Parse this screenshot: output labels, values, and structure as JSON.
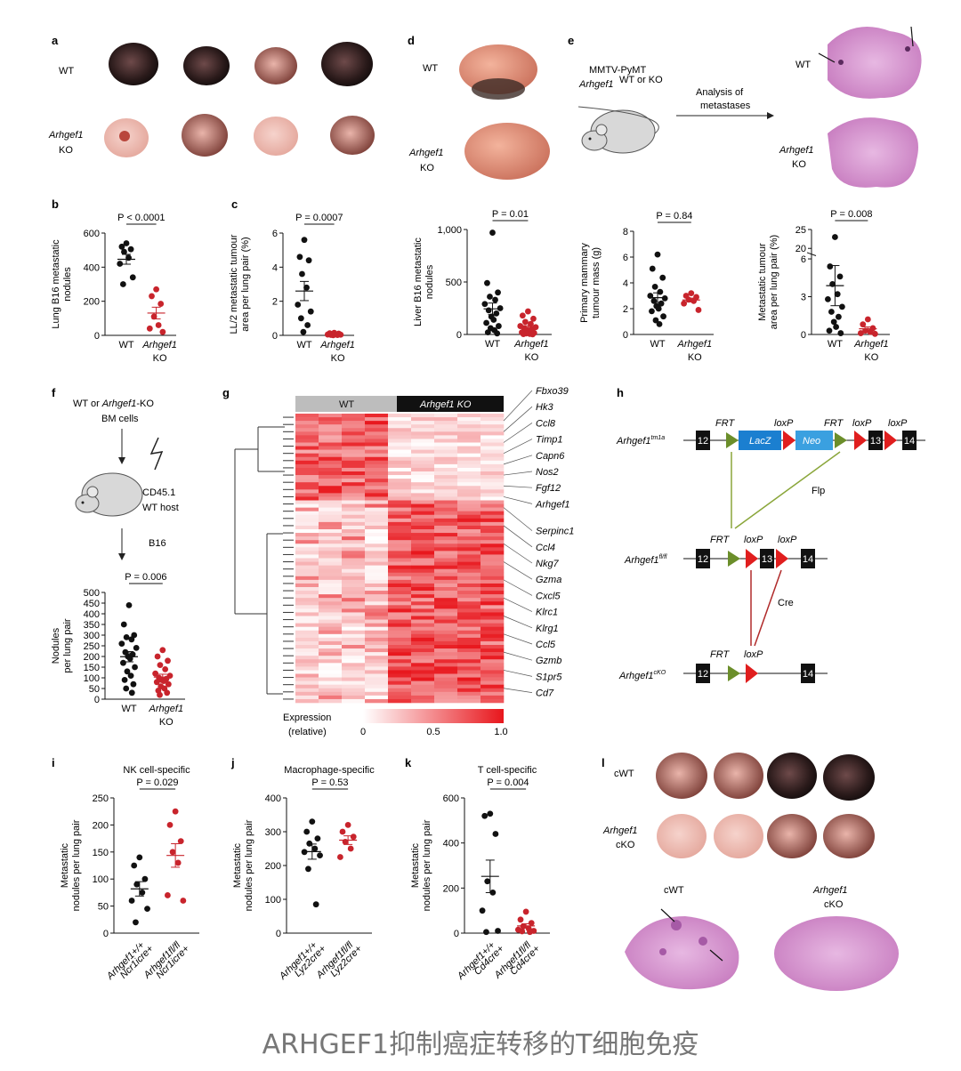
{
  "caption": "ARHGEF1抑制癌症转移的T细胞免疫",
  "colors": {
    "wt": "#111111",
    "ko": "#c8242c",
    "tissue": "#c77bbf",
    "red": "#e02020"
  },
  "panel_a": {
    "label": "a",
    "wt": "WT",
    "ko_gene": "Arhgef1",
    "ko_suffix": "KO"
  },
  "panel_d": {
    "label": "d",
    "wt": "WT",
    "ko_gene": "Arhgef1",
    "ko_suffix": "KO"
  },
  "panel_e": {
    "label": "e",
    "model": "MMTV-PyMT",
    "genotype": "Arhgef1",
    "genotype_sup": "WT or KO",
    "arrow_l1": "Analysis of",
    "arrow_l2": "metastases",
    "wt": "WT",
    "ko_gene": "Arhgef1",
    "ko_suffix": "KO"
  },
  "panel_f": {
    "label": "f",
    "l1a": "WT or ",
    "l1g": "Arhgef1",
    "l1b": "-KO",
    "l2": "BM cells",
    "host1": "CD45.1",
    "host2": "WT host",
    "b16": "B16"
  },
  "panel_g": {
    "label": "g",
    "wt": "WT",
    "ko": "Arhgef1 KO",
    "legend": "Expression",
    "legend2": "(relative)",
    "ticks": [
      "0",
      "0.5",
      "1.0"
    ],
    "genes": [
      "Fbxo39",
      "Hk3",
      "Ccl8",
      "Timp1",
      "Capn6",
      "Nos2",
      "Fgf12",
      "Arhgef1",
      "Serpinc1",
      "Ccl4",
      "Nkg7",
      "Gzma",
      "Cxcl5",
      "Klrc1",
      "Klrg1",
      "Ccl5",
      "Gzmb",
      "S1pr5",
      "Cd7"
    ]
  },
  "panel_h": {
    "label": "h",
    "a1": "Arhgef1",
    "a1s": "tm1a",
    "a2": "Arhgef1",
    "a2s": "fl/fl",
    "a3": "Arhgef1",
    "a3s": "cKO",
    "frt": "FRT",
    "loxp": "loxP",
    "lacz": "LacZ",
    "neo": "Neo",
    "flp": "Flp",
    "cre": "Cre",
    "exons": [
      "12",
      "13",
      "14"
    ]
  },
  "panel_l": {
    "label": "l",
    "cwt": "cWT",
    "ko_gene": "Arhgef1",
    "ko_suffix": "cKO"
  },
  "chart_data": [
    {
      "panel": "b",
      "type": "scatter",
      "ylabel": "Lung B16 metastatic nodules",
      "ylim": [
        0,
        600
      ],
      "yticks": [
        "0",
        "200",
        "400",
        "600"
      ],
      "pvalue": "P < 0.0001",
      "categories": [
        "WT",
        "Arhgef1 KO"
      ],
      "series": [
        {
          "name": "WT",
          "values": [
            540,
            520,
            505,
            490,
            455,
            420,
            340,
            300
          ]
        },
        {
          "name": "Arhgef1 KO",
          "values": [
            270,
            230,
            185,
            110,
            60,
            40,
            20
          ]
        }
      ]
    },
    {
      "panel": "c",
      "type": "scatter",
      "ylabel": "LL/2 metastatic tumour area per lung pair (%)",
      "ylim": [
        0,
        6
      ],
      "yticks": [
        "0",
        "2",
        "4",
        "6"
      ],
      "pvalue": "P = 0.0007",
      "categories": [
        "WT",
        "Arhgef1 KO"
      ],
      "series": [
        {
          "name": "WT",
          "values": [
            5.6,
            4.6,
            4.4,
            3.6,
            2.8,
            1.8,
            1.4,
            1.0,
            0.6,
            0.2
          ]
        },
        {
          "name": "Arhgef1 KO",
          "values": [
            0.15,
            0.12,
            0.1,
            0.08,
            0.06,
            0.05,
            0.04,
            0.03,
            0.02,
            0.01
          ]
        }
      ]
    },
    {
      "panel": "d",
      "type": "scatter",
      "ylabel": "Liver B16 metastatic nodules",
      "ylim": [
        0,
        1000
      ],
      "yticks": [
        "0",
        "500",
        "1,000"
      ],
      "pvalue": "P = 0.01",
      "categories": [
        "WT",
        "Arhgef1 KO"
      ],
      "series": [
        {
          "name": "WT",
          "values": [
            970,
            490,
            400,
            360,
            330,
            290,
            250,
            230,
            200,
            170,
            140,
            110,
            80,
            60,
            40,
            20,
            10
          ]
        },
        {
          "name": "Arhgef1 KO",
          "values": [
            220,
            180,
            150,
            120,
            100,
            80,
            70,
            60,
            50,
            40,
            30,
            20,
            15,
            10,
            5,
            3,
            1
          ]
        }
      ]
    },
    {
      "panel": "mass",
      "type": "scatter",
      "ylabel": "Primary mammary tumour mass (g)",
      "ylim": [
        0,
        8
      ],
      "yticks": [
        "0",
        "2",
        "4",
        "6",
        "8"
      ],
      "pvalue": "P = 0.84",
      "categories": [
        "WT",
        "Arhgef1 KO"
      ],
      "series": [
        {
          "name": "WT",
          "values": [
            6.2,
            5.1,
            4.4,
            3.7,
            3.3,
            3.0,
            2.8,
            2.6,
            2.4,
            2.2,
            2.0,
            1.8,
            1.4,
            1.1,
            0.8
          ]
        },
        {
          "name": "Arhgef1 KO",
          "values": [
            3.2,
            3.0,
            2.9,
            2.7,
            2.6,
            2.4,
            1.9
          ]
        }
      ]
    },
    {
      "panel": "area",
      "type": "scatter",
      "ylabel": "Metastatic tumour area per lung pair (%)",
      "ylim": [
        0,
        25
      ],
      "yticks": [
        "0",
        "3",
        "6",
        "20",
        "25"
      ],
      "pvalue": "P = 0.008",
      "categories": [
        "WT",
        "Arhgef1 KO"
      ],
      "series": [
        {
          "name": "WT",
          "values": [
            23,
            5.4,
            4.6,
            4.0,
            3.2,
            2.8,
            2.2,
            1.8,
            1.4,
            1.0,
            0.6,
            0.3,
            0.1
          ]
        },
        {
          "name": "Arhgef1 KO",
          "values": [
            1.2,
            0.8,
            0.5,
            0.3,
            0.2,
            0.1,
            0.05
          ]
        }
      ]
    },
    {
      "panel": "f",
      "type": "scatter",
      "ylabel": "Nodules per lung pair",
      "ylim": [
        0,
        500
      ],
      "yticks": [
        "0",
        "50",
        "100",
        "150",
        "200",
        "250",
        "300",
        "350",
        "400",
        "450",
        "500"
      ],
      "pvalue": "P = 0.006",
      "categories": [
        "WT",
        "Arhgef1 KO"
      ],
      "series": [
        {
          "name": "WT",
          "values": [
            440,
            350,
            300,
            290,
            280,
            260,
            240,
            220,
            210,
            200,
            190,
            170,
            150,
            130,
            110,
            90,
            70,
            50,
            30
          ]
        },
        {
          "name": "Arhgef1 KO",
          "values": [
            230,
            200,
            180,
            160,
            140,
            120,
            110,
            100,
            95,
            90,
            85,
            80,
            70,
            60,
            50,
            40,
            30,
            20
          ]
        }
      ]
    },
    {
      "panel": "i",
      "title": "NK cell-specific",
      "type": "scatter",
      "ylabel": "Metastatic nodules per lung pair",
      "ylim": [
        0,
        250
      ],
      "yticks": [
        "0",
        "50",
        "100",
        "150",
        "200",
        "250"
      ],
      "pvalue": "P = 0.029",
      "categories": [
        "Arhgef1+/+ Ncr1icre+",
        "Arhgef1fl/fl Ncr1icre+"
      ],
      "series": [
        {
          "name": "Arhgef1+/+ Ncr1icre+",
          "values": [
            140,
            125,
            100,
            90,
            75,
            60,
            45,
            20
          ]
        },
        {
          "name": "Arhgef1fl/fl Ncr1icre+",
          "values": [
            225,
            200,
            170,
            150,
            130,
            70,
            60
          ]
        }
      ]
    },
    {
      "panel": "j",
      "title": "Macrophage-specific",
      "type": "scatter",
      "ylabel": "Metastatic nodules per lung pair",
      "ylim": [
        0,
        400
      ],
      "yticks": [
        "0",
        "100",
        "200",
        "300",
        "400"
      ],
      "pvalue": "P = 0.53",
      "categories": [
        "Arhgef1+/+ Lyz2cre+",
        "Arhgef1fl/fl Lyz2cre+"
      ],
      "series": [
        {
          "name": "Arhgef1+/+ Lyz2cre+",
          "values": [
            330,
            300,
            280,
            265,
            250,
            240,
            230,
            190,
            85
          ]
        },
        {
          "name": "Arhgef1fl/fl Lyz2cre+",
          "values": [
            320,
            300,
            285,
            270,
            250,
            225
          ]
        }
      ]
    },
    {
      "panel": "k",
      "title": "T cell-specific",
      "type": "scatter",
      "ylabel": "Metastatic nodules per lung pair",
      "ylim": [
        0,
        600
      ],
      "yticks": [
        "0",
        "200",
        "400",
        "600"
      ],
      "pvalue": "P = 0.004",
      "categories": [
        "Arhgef1+/+ Cd4cre+",
        "Arhgef1fl/fl Cd4cre+"
      ],
      "series": [
        {
          "name": "Arhgef1+/+ Cd4cre+",
          "values": [
            530,
            520,
            440,
            230,
            180,
            100,
            10,
            5
          ]
        },
        {
          "name": "Arhgef1fl/fl Cd4cre+",
          "values": [
            95,
            60,
            45,
            30,
            20,
            15,
            10,
            8,
            5
          ]
        }
      ]
    }
  ]
}
